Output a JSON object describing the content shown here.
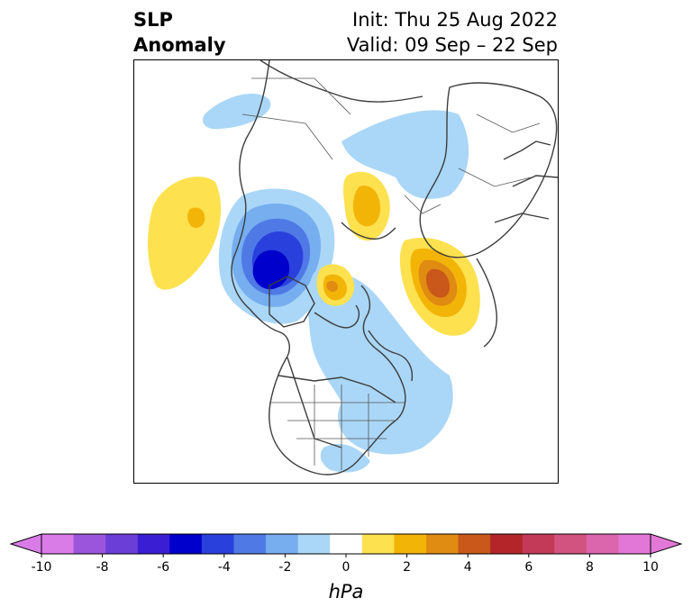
{
  "title": {
    "left_line1": "SLP",
    "left_line2": "Anomaly",
    "right_line1": "Init: Thu 25 Aug 2022",
    "right_line2": "Valid: 09 Sep – 22 Sep"
  },
  "colorbar": {
    "unit": "hPa",
    "ticks": [
      "-10",
      "-8",
      "-6",
      "-4",
      "-2",
      "0",
      "2",
      "4",
      "6",
      "8",
      "10"
    ],
    "colors": [
      "#d97ce8",
      "#9b55dd",
      "#6b3ed8",
      "#3a1ed4",
      "#0000cc",
      "#2a40dd",
      "#4f7ae6",
      "#76aef0",
      "#aad7f7",
      "#ffffff",
      "#fde14f",
      "#f3b408",
      "#e08b12",
      "#c9581a",
      "#b4252a",
      "#c33a58",
      "#d25280",
      "#db66ae",
      "#e377d8"
    ],
    "under_color": "#d97ce8",
    "over_color": "#e377d8"
  }
}
